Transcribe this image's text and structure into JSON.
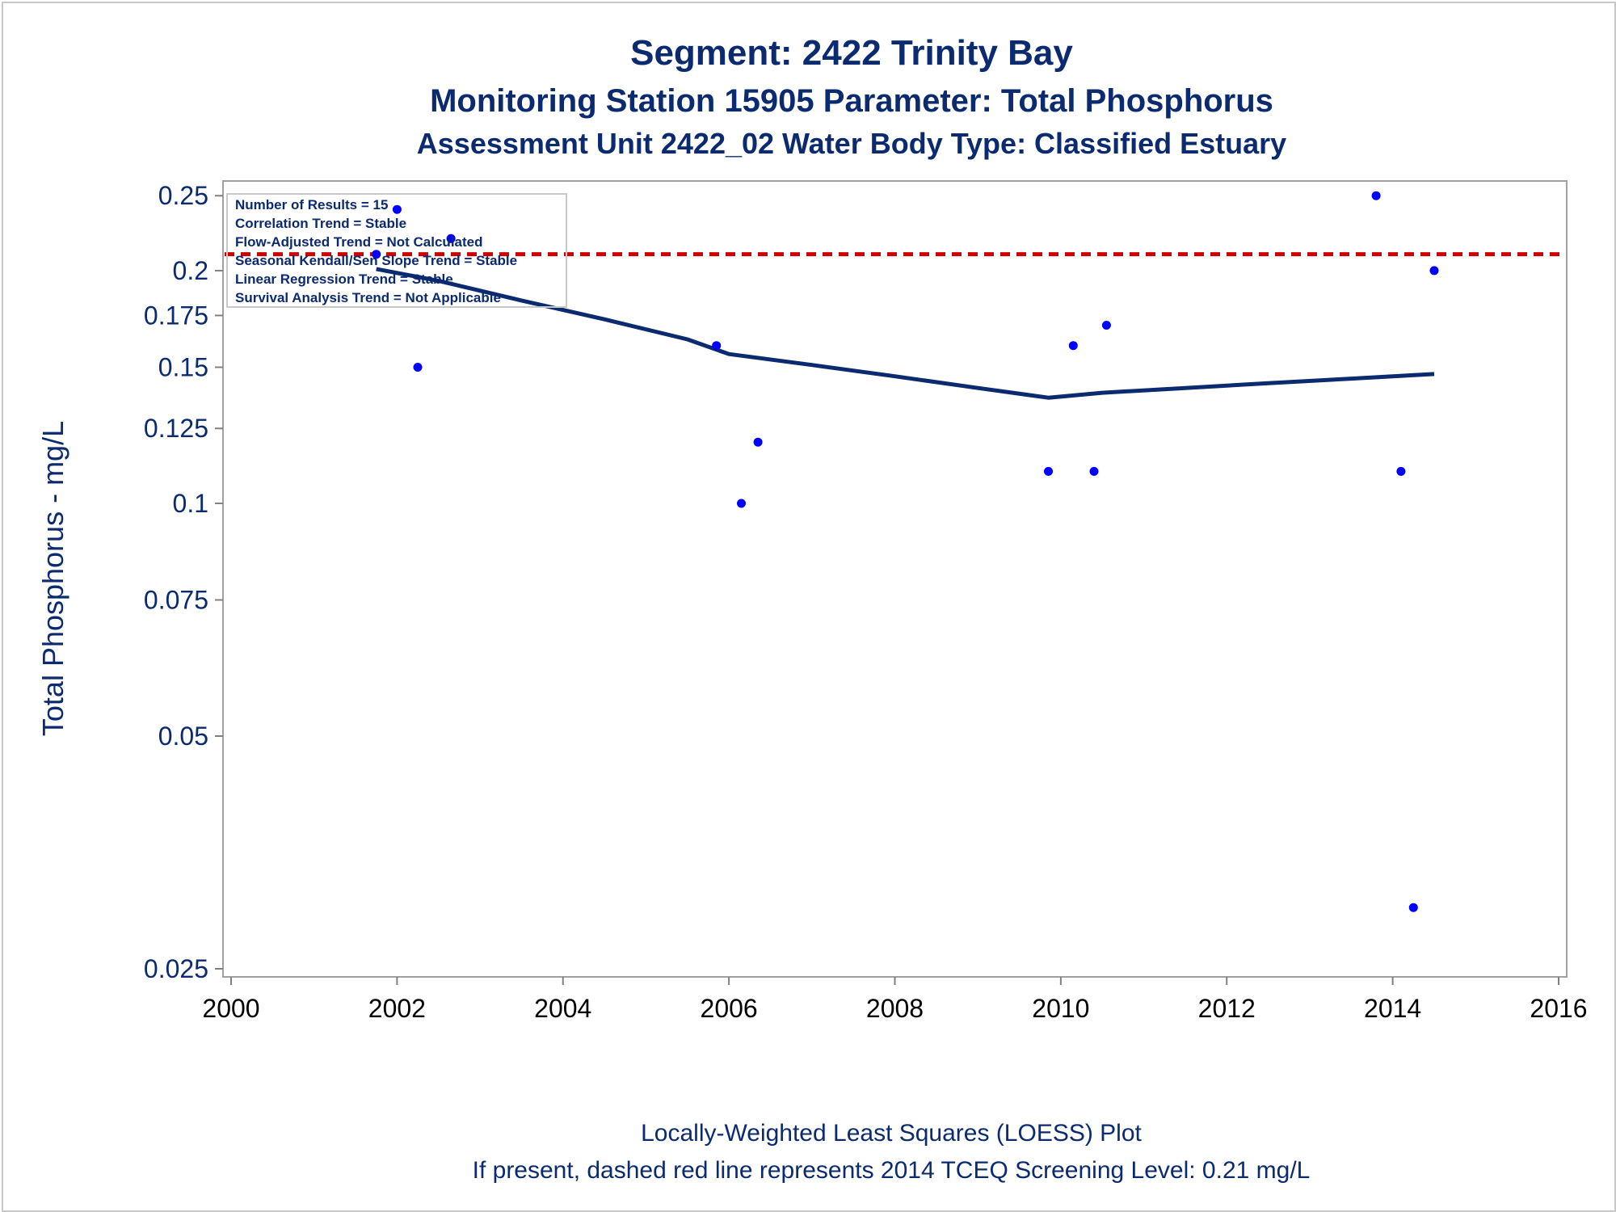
{
  "chart_data": {
    "type": "scatter",
    "title": "Segment: 2422  Trinity Bay",
    "subtitle": "Monitoring Station 15905 Parameter: Total Phosphorus",
    "subtitle2": "Assessment Unit 2422_02   Water Body Type: Classified Estuary",
    "xlabel": "",
    "ylabel": "Total Phosphorus - mg/L",
    "xlim": [
      2000,
      2016
    ],
    "ylim": [
      0.025,
      0.255
    ],
    "yscale": "log",
    "xticks": [
      "2000",
      "2002",
      "2004",
      "2006",
      "2008",
      "2010",
      "2012",
      "2014",
      "2016"
    ],
    "yticks": [
      "0.025",
      "0.05",
      "0.075",
      "0.1",
      "0.125",
      "0.15",
      "0.175",
      "0.2",
      "0.25"
    ],
    "series": [
      {
        "kind": "points",
        "color": "#0000ff",
        "x": [
          2001.75,
          2002.0,
          2002.25,
          2002.65,
          2005.85,
          2006.15,
          2006.35,
          2009.85,
          2010.15,
          2010.4,
          2010.55,
          2013.8,
          2014.1,
          2014.25,
          2014.5
        ],
        "y": [
          0.21,
          0.24,
          0.15,
          0.22,
          0.16,
          0.1,
          0.12,
          0.11,
          0.16,
          0.11,
          0.17,
          0.25,
          0.11,
          0.03,
          0.2
        ]
      },
      {
        "kind": "loess",
        "color": "#0b2a6f",
        "x": [
          2001.75,
          2002.5,
          2003.5,
          2004.5,
          2005.5,
          2006.0,
          2007.0,
          2008.0,
          2009.0,
          2009.85,
          2010.5,
          2011.5,
          2012.5,
          2013.5,
          2014.5
        ],
        "y": [
          0.201,
          0.194,
          0.183,
          0.173,
          0.163,
          0.156,
          0.151,
          0.146,
          0.141,
          0.137,
          0.139,
          0.141,
          0.143,
          0.145,
          0.147
        ]
      }
    ],
    "reference_line": {
      "y": 0.21,
      "color": "#cc0000",
      "style": "dashed"
    },
    "stats": [
      "Number of Results = 15",
      "Correlation Trend = Stable",
      "Flow-Adjusted Trend = Not Calculated",
      "Seasonal Kendall/Sen Slope Trend = Stable",
      "Linear Regression Trend = Stable",
      "Survival Analysis Trend = Not Applicable"
    ],
    "legend": "top-left",
    "grid": false,
    "footnotes": [
      "Locally-Weighted Least Squares (LOESS) Plot",
      "If present, dashed red line represents 2014 TCEQ Screening Level: 0.21 mg/L"
    ]
  }
}
